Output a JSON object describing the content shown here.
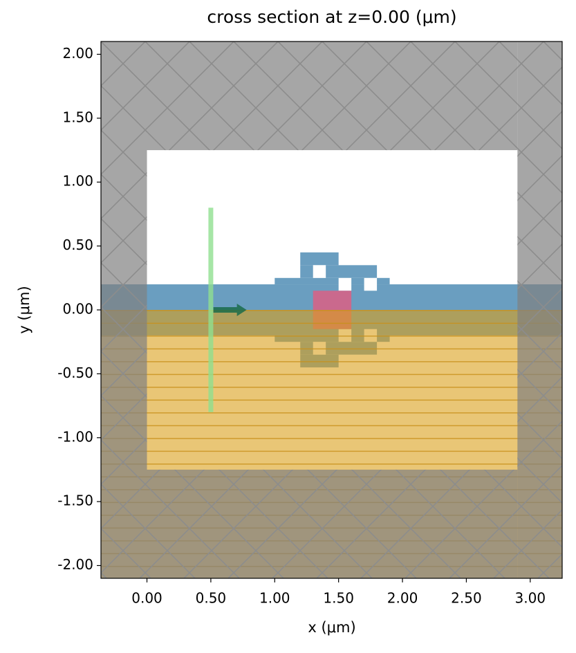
{
  "chart_data": {
    "type": "structure",
    "title": "cross section at z=0.00 (μm)",
    "x_label": "x (μm)",
    "y_label": "y (μm)",
    "xlim": [
      -0.36,
      3.25
    ],
    "ylim": [
      -2.1,
      2.1
    ],
    "xticks": [
      {
        "value": 0,
        "label": "0.00"
      },
      {
        "value": 0.5,
        "label": "0.50"
      },
      {
        "value": 1,
        "label": "1.00"
      },
      {
        "value": 1.5,
        "label": "1.50"
      },
      {
        "value": 2,
        "label": "2.00"
      },
      {
        "value": 2.5,
        "label": "2.50"
      },
      {
        "value": 3,
        "label": "3.00"
      }
    ],
    "yticks": [
      {
        "value": -2,
        "label": "-2.00"
      },
      {
        "value": -1.5,
        "label": "-1.50"
      },
      {
        "value": -1,
        "label": "-1.00"
      },
      {
        "value": -0.5,
        "label": "-0.50"
      },
      {
        "value": 0,
        "label": "0.00"
      },
      {
        "value": 0.5,
        "label": "0.50"
      },
      {
        "value": 1,
        "label": "1.00"
      },
      {
        "value": 1.5,
        "label": "1.50"
      },
      {
        "value": 2,
        "label": "2.00"
      }
    ],
    "waveguide": {
      "color": "#6a9ec0",
      "bounds": [
        [
          -0.36,
          3.25,
          -0.2,
          0.2
        ]
      ]
    },
    "design_blocks": {
      "color": "#6a9ec0",
      "bounds": [
        [
          1.2,
          1.5,
          0.35,
          0.45
        ],
        [
          1.2,
          1.8,
          0.25,
          0.35
        ],
        [
          1.0,
          1.9,
          0.2,
          0.25
        ],
        [
          1.2,
          1.5,
          -0.45,
          -0.35
        ],
        [
          1.2,
          1.8,
          -0.35,
          -0.25
        ],
        [
          1.0,
          1.9,
          -0.25,
          -0.2
        ]
      ]
    },
    "holes": {
      "color": "#ffffff",
      "bounds": [
        [
          1.3,
          1.4,
          0.25,
          0.35
        ],
        [
          1.5,
          1.6,
          0.15,
          0.25
        ],
        [
          1.7,
          1.8,
          0.15,
          0.25
        ],
        [
          1.3,
          1.4,
          -0.35,
          -0.25
        ],
        [
          1.5,
          1.6,
          -0.25,
          -0.15
        ],
        [
          1.7,
          1.8,
          -0.25,
          -0.15
        ]
      ]
    },
    "box_region": {
      "color": "#d0668a",
      "bounds": [
        [
          1.3,
          1.6,
          -0.15,
          0.15
        ]
      ]
    },
    "substrate": {
      "color": "#daa01b",
      "bounds": [
        [
          -0.36,
          3.25,
          -2.1,
          0
        ]
      ]
    },
    "pml": {
      "color": "#808080",
      "bounds": [
        [
          -0.36,
          0,
          -2.1,
          2.1
        ],
        [
          2.9,
          3.25,
          -2.1,
          2.1
        ],
        [
          0,
          2.9,
          1.25,
          2.1
        ],
        [
          0,
          2.9,
          -2.1,
          -1.25
        ]
      ]
    },
    "source": {
      "color": "#90e090",
      "x": 0.5,
      "y": [
        -0.8,
        0.8
      ]
    },
    "arrow": {
      "color": "#1a6b4a",
      "x": [
        0.52,
        0.78
      ],
      "y": 0
    }
  }
}
